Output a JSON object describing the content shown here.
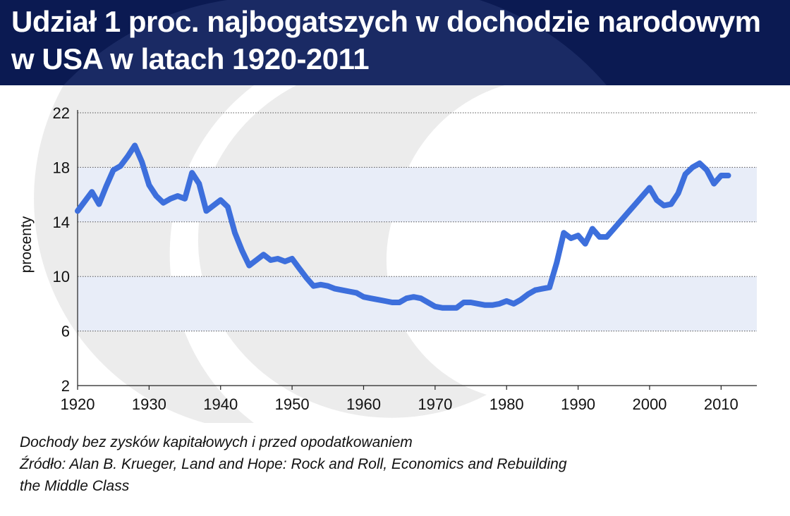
{
  "header": {
    "title_line1": "Udział 1 proc. najbogatszych w dochodzie narodowym",
    "title_line2": "w USA w latach 1920-2011"
  },
  "colors": {
    "header_bg": "#0b1a52",
    "band": "#e8edf8",
    "line": "#3d6fdc",
    "watermark": "#ebebeb"
  },
  "notes": {
    "line1": "Dochody bez zysków kapitałowych i przed opodatkowaniem",
    "line2": "Źródło: Alan B. Krueger, Land and Hope: Rock and Roll, Economics and Rebuilding",
    "line3": "the Middle Class"
  },
  "chart_data": {
    "type": "line",
    "title": "Udział 1 proc. najbogatszych w dochodzie narodowym w USA w latach 1920-2011",
    "xlabel": "",
    "ylabel": "procenty",
    "xlim": [
      1920,
      2015
    ],
    "ylim": [
      2,
      22
    ],
    "x_ticks": [
      1920,
      1930,
      1940,
      1950,
      1960,
      1970,
      1980,
      1990,
      2000,
      2010
    ],
    "y_ticks": [
      2,
      6,
      10,
      14,
      18,
      22
    ],
    "grid": "dotted horizontal",
    "shaded_bands": [
      [
        6,
        10
      ],
      [
        14,
        18
      ]
    ],
    "legend": "none",
    "series": [
      {
        "x": [
          1920,
          1921,
          1922,
          1923,
          1924,
          1925,
          1926,
          1927,
          1928,
          1929,
          1930,
          1931,
          1932,
          1933,
          1934,
          1935,
          1936,
          1937,
          1938,
          1939,
          1940,
          1941,
          1942,
          1943,
          1944,
          1945,
          1946,
          1947,
          1948,
          1949,
          1950,
          1951,
          1952,
          1953,
          1954,
          1955,
          1956,
          1957,
          1958,
          1959,
          1960,
          1961,
          1962,
          1963,
          1964,
          1965,
          1966,
          1967,
          1968,
          1969,
          1970,
          1971,
          1972,
          1973,
          1974,
          1975,
          1976,
          1977,
          1978,
          1979,
          1980,
          1981,
          1982,
          1983,
          1984,
          1985,
          1986,
          1987,
          1988,
          1989,
          1990,
          1991,
          1992,
          1993,
          1994,
          1995,
          1996,
          1997,
          1998,
          1999,
          2000,
          2001,
          2002,
          2003,
          2004,
          2005,
          2006,
          2007,
          2008,
          2009,
          2010,
          2011
        ],
        "y": [
          14.8,
          15.5,
          16.2,
          15.3,
          16.6,
          17.8,
          18.1,
          18.8,
          19.6,
          18.4,
          16.7,
          15.9,
          15.4,
          15.7,
          15.9,
          15.7,
          17.6,
          16.8,
          14.8,
          15.2,
          15.6,
          15.1,
          13.2,
          11.9,
          10.8,
          11.2,
          11.6,
          11.2,
          11.3,
          11.1,
          11.3,
          10.6,
          9.9,
          9.3,
          9.4,
          9.3,
          9.1,
          9.0,
          8.9,
          8.8,
          8.5,
          8.4,
          8.3,
          8.2,
          8.1,
          8.1,
          8.4,
          8.5,
          8.4,
          8.1,
          7.8,
          7.7,
          7.7,
          7.7,
          8.1,
          8.1,
          8.0,
          7.9,
          7.9,
          8.0,
          8.2,
          8.0,
          8.3,
          8.7,
          9.0,
          9.1,
          9.2,
          11.0,
          13.2,
          12.8,
          13.0,
          12.4,
          13.5,
          12.9,
          12.9,
          13.5,
          14.1,
          14.7,
          15.3,
          15.9,
          16.5,
          15.6,
          15.2,
          15.3,
          16.1,
          17.5,
          18.0,
          18.3,
          17.8,
          16.8,
          17.4,
          17.4
        ]
      }
    ]
  }
}
